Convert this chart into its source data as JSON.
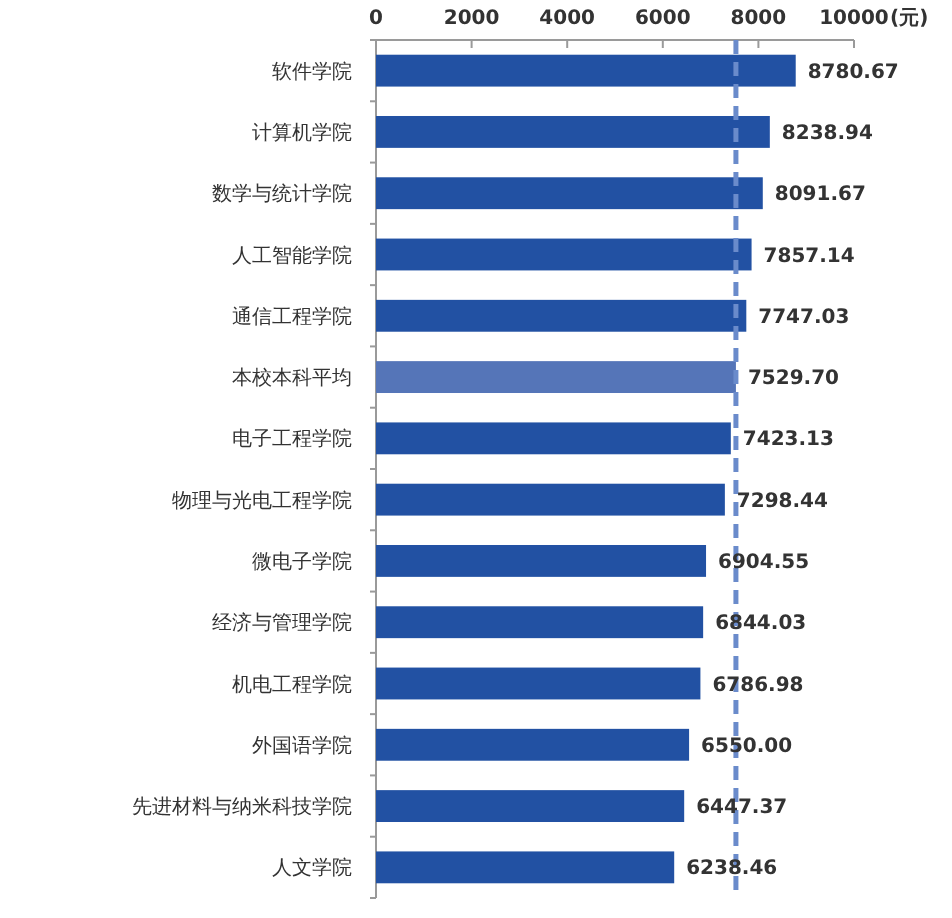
{
  "chart_data": {
    "type": "bar",
    "orientation": "horizontal",
    "categories": [
      "软件学院",
      "计算机学院",
      "数学与统计学院",
      "人工智能学院",
      "通信工程学院",
      "本校本科平均",
      "电子工程学院",
      "物理与光电工程学院",
      "微电子学院",
      "经济与管理学院",
      "机电工程学院",
      "外国语学院",
      "先进材料与纳米科技学院",
      "人文学院"
    ],
    "values": [
      8780.67,
      8238.94,
      8091.67,
      7857.14,
      7747.03,
      7529.7,
      7423.13,
      7298.44,
      6904.55,
      6844.03,
      6786.98,
      6550.0,
      6447.37,
      6238.46
    ],
    "value_labels": [
      "8780.67",
      "8238.94",
      "8091.67",
      "7857.14",
      "7747.03",
      "7529.70",
      "7423.13",
      "7298.44",
      "6904.55",
      "6844.03",
      "6786.98",
      "6550.00",
      "6447.37",
      "6238.46"
    ],
    "colors": [
      "#2251a3",
      "#2251a3",
      "#2251a3",
      "#2251a3",
      "#2251a3",
      "#5575b8",
      "#2251a3",
      "#2251a3",
      "#2251a3",
      "#2251a3",
      "#2251a3",
      "#2251a3",
      "#2251a3",
      "#2251a3"
    ],
    "xlabel": "(元)",
    "xlim": [
      0,
      10000
    ],
    "xticks": [
      0,
      2000,
      4000,
      6000,
      8000,
      10000
    ],
    "ref_lines": [
      {
        "axis": "x",
        "value": 7529.7,
        "color": "#6a8bcb",
        "line_style": "dashed"
      }
    ]
  }
}
